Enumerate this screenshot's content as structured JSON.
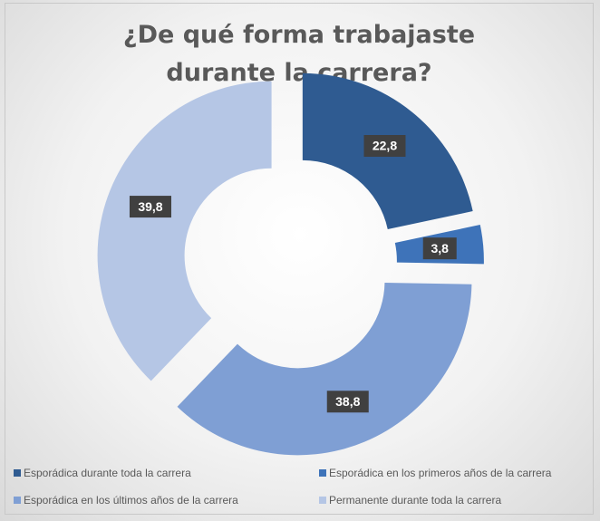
{
  "chart_data": {
    "type": "donut",
    "title": "¿De qué forma trabajaste durante la carrera?",
    "categories": [
      "Esporádica durante toda la carrera",
      "Esporádica en los primeros años de la carrera",
      "Esporádica en los últimos años de la carrera",
      "Permanente durante toda la carrera"
    ],
    "values": [
      22.8,
      3.8,
      38.8,
      39.8
    ],
    "value_labels": [
      "22,8",
      "3,8",
      "38,8",
      "39,8"
    ],
    "colors": [
      "#2f5b91",
      "#3e73b9",
      "#7f9fd4",
      "#b5c6e5"
    ],
    "legend": "bottom"
  }
}
